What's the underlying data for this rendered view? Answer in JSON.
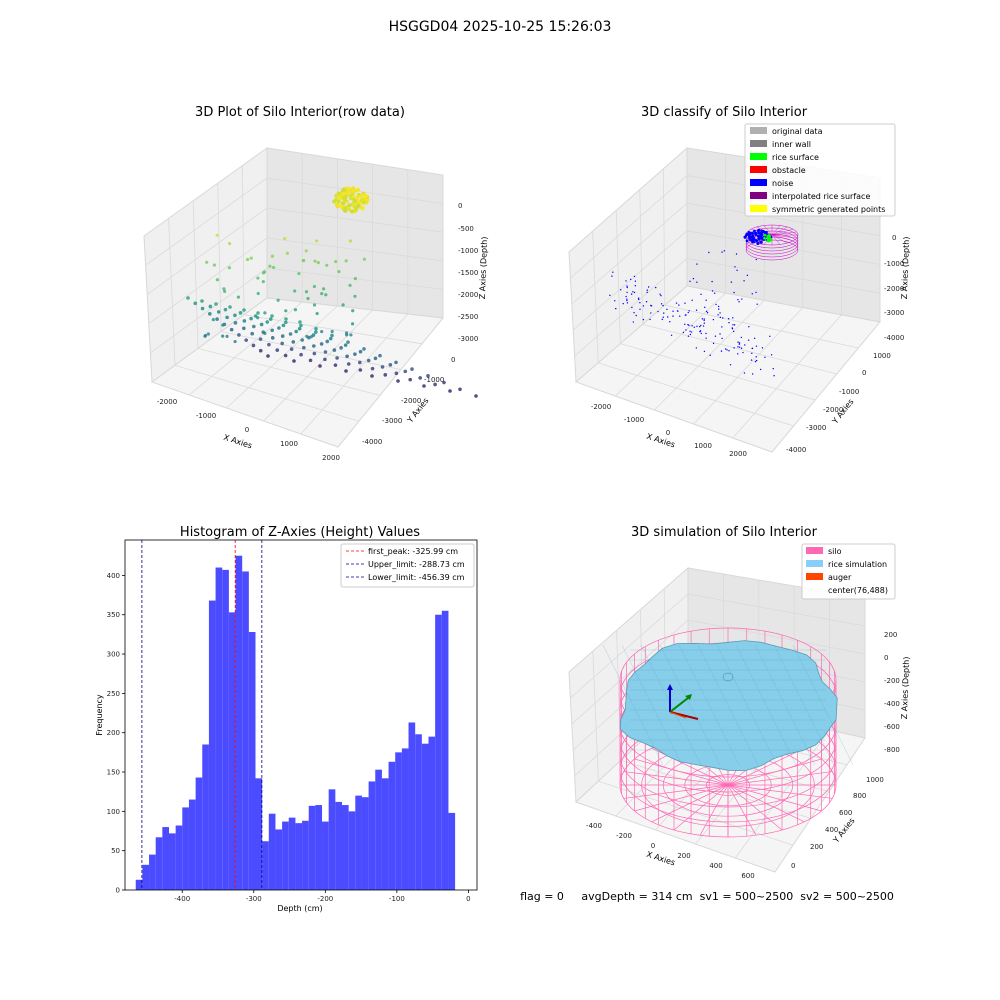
{
  "suptitle": "HSGGD04 2025-10-25 15:26:03",
  "footer": "flag = 0     avgDepth = 314 cm  sv1 = 500~2500  sv2 = 500~2500",
  "chart_data": [
    {
      "type": "scatter",
      "title": "3D Plot of Silo Interior(row data)",
      "xlabel": "X Axies",
      "ylabel": "Y Axies",
      "zlabel": "Z Axies (Depth)",
      "x_ticks": [
        "-2000",
        "-1000",
        "0",
        "1000",
        "2000"
      ],
      "y_ticks": [
        "0",
        "-1000",
        "-2000",
        "-3000",
        "-4000"
      ],
      "z_ticks": [
        "0",
        "-500",
        "-1000",
        "-1500",
        "-2000",
        "-2500",
        "-3000"
      ],
      "colormap": "viridis",
      "grid": true
    },
    {
      "type": "scatter",
      "title": "3D classify of Silo Interior",
      "xlabel": "X Axies",
      "ylabel": "Y Axies",
      "zlabel": "Z Axies (Depth)",
      "x_ticks": [
        "-2000",
        "-1000",
        "0",
        "1000",
        "2000"
      ],
      "y_ticks": [
        "1000",
        "0",
        "-1000",
        "-2000",
        "-3000",
        "-4000"
      ],
      "z_ticks": [
        "0",
        "-1000",
        "-2000",
        "-3000",
        "-4000"
      ],
      "legend": [
        {
          "label": "original data",
          "color": "#b0b0b0"
        },
        {
          "label": "inner wall",
          "color": "#808080"
        },
        {
          "label": "rice surface",
          "color": "#00ff00"
        },
        {
          "label": "obstacle",
          "color": "#ff0000"
        },
        {
          "label": "noise",
          "color": "#0000ff"
        },
        {
          "label": "interpolated rice surface",
          "color": "#800080"
        },
        {
          "label": "symmetric generated points",
          "color": "#ffff00"
        }
      ],
      "legend_loc": "top-right",
      "grid": true
    },
    {
      "type": "bar",
      "title": "Histogram of Z-Axies (Height) Values",
      "xlabel": "Depth (cm)",
      "ylabel": "Frequency",
      "xlim": [
        -480,
        12
      ],
      "ylim": [
        0,
        445
      ],
      "x_ticks": [
        -400,
        -300,
        -200,
        -100,
        0
      ],
      "y_ticks": [
        0,
        50,
        100,
        150,
        200,
        250,
        300,
        350,
        400
      ],
      "bin_start": -465,
      "bin_width": 9.3,
      "values": [
        13,
        32,
        45,
        67,
        80,
        72,
        82,
        105,
        115,
        143,
        185,
        368,
        410,
        407,
        353,
        425,
        405,
        328,
        142,
        62,
        97,
        77,
        87,
        92,
        85,
        88,
        107,
        108,
        87,
        128,
        112,
        108,
        100,
        120,
        118,
        138,
        153,
        142,
        163,
        175,
        180,
        213,
        198,
        186,
        195,
        350,
        355,
        98
      ],
      "bar_color": "#4b4bff",
      "lines": [
        {
          "label": "first_peak: -325.99 cm",
          "x": -325.99,
          "color": "#ff0000"
        },
        {
          "label": "Upper_limit: -288.73 cm",
          "x": -288.73,
          "color": "#00008b"
        },
        {
          "label": "Lower_limit: -456.39 cm",
          "x": -456.39,
          "color": "#00008b"
        }
      ],
      "legend_loc": "top-right"
    },
    {
      "type": "surface",
      "title": "3D simulation of Silo Interior",
      "xlabel": "X Axies",
      "ylabel": "Y Axies",
      "zlabel": "Z Axies (Depth)",
      "x_ticks": [
        "-400",
        "-200",
        "0",
        "200",
        "400",
        "600"
      ],
      "y_ticks": [
        "0",
        "200",
        "400",
        "600",
        "800",
        "1000"
      ],
      "z_ticks": [
        "200",
        "0",
        "-200",
        "-400",
        "-600",
        "-800"
      ],
      "legend": [
        {
          "label": "silo",
          "color": "#ff69b4"
        },
        {
          "label": "rice simulation",
          "color": "#87cefa"
        },
        {
          "label": "auger",
          "color": "#ff4500"
        },
        {
          "label": "center(76,488)",
          "color": ""
        }
      ],
      "legend_loc": "top-right"
    }
  ]
}
